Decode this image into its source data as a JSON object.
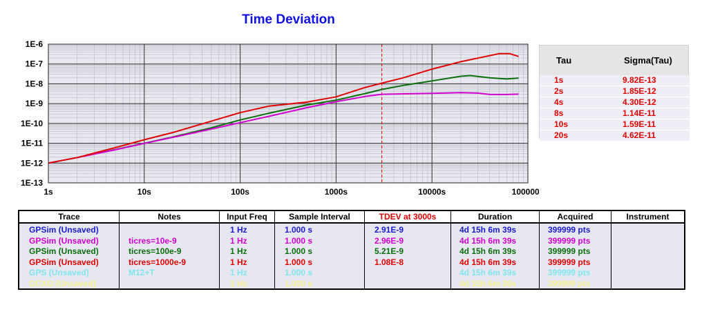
{
  "chart_data": {
    "type": "line",
    "title": "Time Deviation",
    "xlabel": "",
    "ylabel": "",
    "x_scale": "log",
    "y_scale": "log",
    "xlim": [
      1,
      100000
    ],
    "ylim": [
      1e-13,
      1e-06
    ],
    "x_ticks": [
      "1s",
      "10s",
      "100s",
      "1000s",
      "10000s",
      "100000s"
    ],
    "y_ticks": [
      "1E-6",
      "1E-7",
      "1E-8",
      "1E-9",
      "1E-10",
      "1E-11",
      "1E-12",
      "1E-13"
    ],
    "marker_x": 3000,
    "marker_color": "#e00000",
    "grid": true,
    "legend": "none",
    "series": [
      {
        "color": "#0a6e0a",
        "x": [
          1,
          2,
          5,
          10,
          20,
          50,
          100,
          200,
          500,
          1000,
          2000,
          3000,
          5000,
          10000,
          20000,
          25000,
          40000,
          60000,
          80000
        ],
        "y": [
          1e-12,
          1.9e-12,
          4.8e-12,
          1e-11,
          2.1e-11,
          6e-11,
          1.5e-10,
          3.3e-10,
          8.6e-10,
          1.5e-09,
          3.2e-09,
          5.2e-09,
          8.3e-09,
          1.4e-08,
          2.4e-08,
          2.6e-08,
          2e-08,
          1.75e-08,
          1.95e-08
        ]
      },
      {
        "color": "#d000d0",
        "x": [
          1,
          2,
          5,
          10,
          20,
          50,
          100,
          200,
          500,
          1000,
          2000,
          3000,
          5000,
          10000,
          20000,
          30000,
          40000,
          60000,
          80000
        ],
        "y": [
          1e-12,
          1.9e-12,
          4.7e-12,
          9.8e-12,
          2e-11,
          5.2e-11,
          1.1e-10,
          2.3e-10,
          6.3e-10,
          1.25e-09,
          2.3e-09,
          2.96e-09,
          3.1e-09,
          3.3e-09,
          3.6e-09,
          3.4e-09,
          2.9e-09,
          2.9e-09,
          3e-09
        ]
      },
      {
        "color": "#e00000",
        "x": [
          1,
          2,
          5,
          10,
          20,
          50,
          100,
          200,
          500,
          1000,
          2000,
          3000,
          5000,
          10000,
          20000,
          50000,
          65000,
          80000
        ],
        "y": [
          1e-12,
          1.9e-12,
          6e-12,
          1.5e-11,
          3.5e-11,
          1.3e-10,
          3.5e-10,
          7.5e-10,
          1.2e-09,
          2.2e-09,
          6.5e-09,
          1.08e-08,
          2e-08,
          5.5e-08,
          1.3e-07,
          3.3e-07,
          3.3e-07,
          2.4e-07
        ]
      }
    ]
  },
  "sigma_panel": {
    "header_tau": "Tau",
    "header_sigma": "Sigma(Tau)",
    "rows": [
      {
        "tau": "1s",
        "sigma": "9.82E-13"
      },
      {
        "tau": "2s",
        "sigma": "1.85E-12"
      },
      {
        "tau": "4s",
        "sigma": "4.30E-12"
      },
      {
        "tau": "8s",
        "sigma": "1.14E-11"
      },
      {
        "tau": "10s",
        "sigma": "1.59E-11"
      },
      {
        "tau": "20s",
        "sigma": "4.62E-11"
      }
    ]
  },
  "trace_table": {
    "headers": [
      "Trace",
      "Notes",
      "Input Freq",
      "Sample Interval",
      "TDEV at 3000s",
      "Duration",
      "Acquired",
      "Instrument"
    ],
    "header_colors": [
      "#000000",
      "#000000",
      "#000000",
      "#000000",
      "#e00000",
      "#000000",
      "#000000",
      "#000000"
    ],
    "rows": [
      {
        "color": "#1a1ad0",
        "cells": [
          "GPSim (Unsaved)",
          "",
          "1 Hz",
          "1.000 s",
          "2.91E-9",
          "4d 15h 6m 39s",
          "399999 pts",
          ""
        ]
      },
      {
        "color": "#d000d0",
        "cells": [
          "GPSim (Unsaved)",
          "ticres=10e-9",
          "1 Hz",
          "1.000 s",
          "2.96E-9",
          "4d 15h 6m 39s",
          "399999 pts",
          ""
        ]
      },
      {
        "color": "#0a6e0a",
        "cells": [
          "GPSim (Unsaved)",
          "ticres=100e-9",
          "1 Hz",
          "1.000 s",
          "5.21E-9",
          "4d 15h 6m 39s",
          "399999 pts",
          ""
        ]
      },
      {
        "color": "#e00000",
        "cells": [
          "GPSim (Unsaved)",
          "ticres=1000e-9",
          "1 Hz",
          "1.000 s",
          "1.08E-8",
          "4d 15h 6m 39s",
          "399999 pts",
          ""
        ]
      },
      {
        "color": "#7fe6ee",
        "cells": [
          "GPS (Unsaved)",
          "M12+T",
          "1 Hz",
          "1.000 s",
          "",
          "4d 15h 6m 39s",
          "399999 pts",
          ""
        ]
      },
      {
        "color": "#f4ee90",
        "cells": [
          "OCXO (Unsaved)",
          "",
          "1 Hz",
          "1.000 s",
          "",
          "4d 15h 6m 39s",
          "399999 pts",
          ""
        ]
      }
    ]
  }
}
